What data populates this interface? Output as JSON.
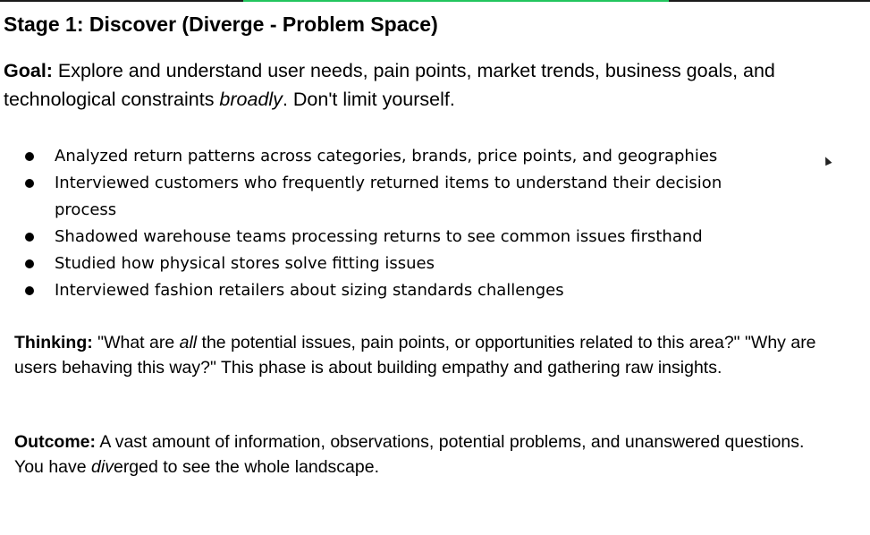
{
  "title": "Stage 1: Discover (Diverge - Problem Space)",
  "goal": {
    "label": "Goal:",
    "text_before": " Explore and understand user needs, pain points, market trends, business goals, and technological constraints ",
    "emphasis": "broadly",
    "text_after": ". Don't limit yourself."
  },
  "bullets": [
    "Analyzed return patterns across categories, brands, price points, and geographies",
    "Interviewed customers who frequently returned items to understand their decision process",
    "Shadowed warehouse teams processing returns to see common issues firsthand",
    "Studied how physical stores solve fitting issues",
    "Interviewed fashion retailers about sizing standards challenges"
  ],
  "thinking": {
    "label": "Thinking:",
    "text_before": " \"What are ",
    "emphasis": "all",
    "text_after": " the potential issues, pain points, or opportunities related to this area?\" \"Why are users behaving this way?\" This phase is about building empathy and gathering raw insights."
  },
  "outcome": {
    "label": "Outcome:",
    "text_before": " A vast amount of information, observations, potential problems, and unanswered questions. You have ",
    "emphasis": "div",
    "text_after": "erged to see the whole landscape."
  },
  "colors": {
    "text": "#000000",
    "background": "#ffffff",
    "top_accent": "#22c55e"
  },
  "icons": {
    "cursor": "mouse-pointer-icon"
  }
}
